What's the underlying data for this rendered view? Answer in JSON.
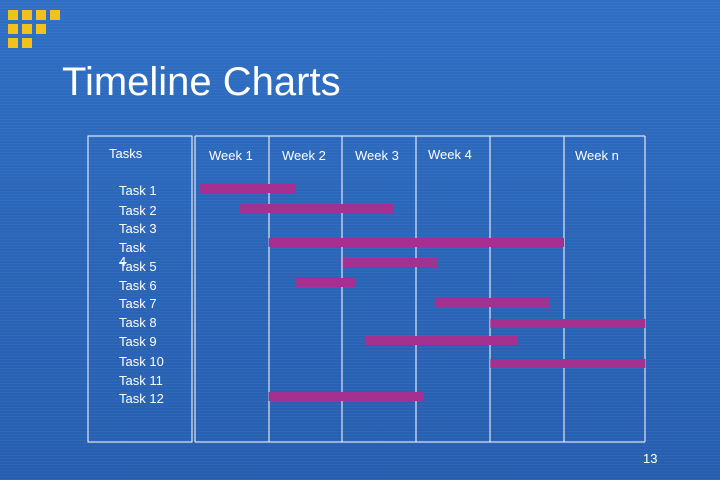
{
  "slide": {
    "title": "Timeline Charts",
    "page_number": "13"
  },
  "colors": {
    "background": "#2b66b9",
    "bar": "#a4318f",
    "grid": "#ffffff",
    "logo": "#f3c21a",
    "text": "#ffffff"
  },
  "chart_data": {
    "type": "bar",
    "orientation": "horizontal-gantt",
    "tasks_header": "Tasks",
    "columns": [
      "Week 1",
      "Week 2",
      "Week 3",
      "Week 4",
      "",
      "Week n"
    ],
    "categories": [
      "Task 1",
      "Task 2",
      "Task 3",
      "Task 4",
      "Task 5",
      "Task 6",
      "Task 7",
      "Task 8",
      "Task 9",
      "Task 10",
      "Task 11",
      "Task 12"
    ],
    "bars": [
      {
        "task": "Task 1",
        "start": 0.07,
        "end": 1.36
      },
      {
        "task": "Task 2",
        "start": 0.61,
        "end": 2.69
      },
      {
        "task": "Task 3",
        "start": 1.0,
        "end": 5.0
      },
      {
        "task": "Task 4",
        "start": 2.0,
        "end": 3.28
      },
      {
        "task": "Task 5",
        "start": 1.37,
        "end": 2.17
      },
      {
        "task": "Task 6",
        "start": 3.26,
        "end": 4.8
      },
      {
        "task": "Task 7",
        "start": 4.0,
        "end": 6.1
      },
      {
        "task": "Task 8",
        "start": 2.3,
        "end": 4.37
      },
      {
        "task": "Task 9",
        "start": 4.0,
        "end": 6.1
      },
      {
        "task": "Task 10",
        "start": 1.0,
        "end": 3.1
      }
    ],
    "grid": true
  }
}
